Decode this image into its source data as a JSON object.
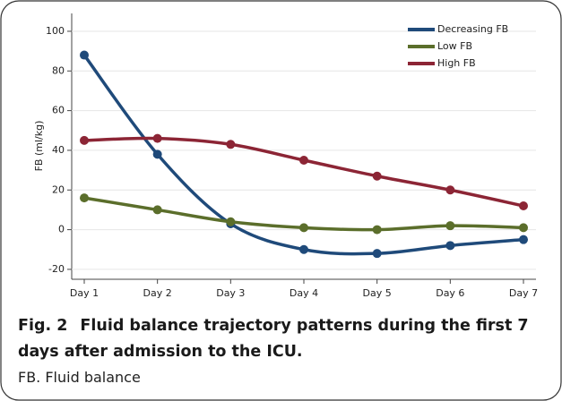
{
  "chart_data": {
    "type": "line",
    "y_label": "FB (ml/kg)",
    "categories": [
      "Day 1",
      "Day 2",
      "Day 3",
      "Day 4",
      "Day 5",
      "Day 6",
      "Day 7"
    ],
    "series": [
      {
        "name": "Decreasing FB",
        "color": "#1f4a7a",
        "values": [
          88,
          38,
          3,
          -10,
          -12,
          -8,
          -5
        ]
      },
      {
        "name": "Low FB",
        "color": "#5b6e2b",
        "values": [
          16,
          10,
          4,
          1,
          0,
          2,
          1
        ]
      },
      {
        "name": "High FB",
        "color": "#8c2535",
        "values": [
          45,
          46,
          43,
          35,
          27,
          20,
          12
        ]
      }
    ],
    "ylim": [
      -25,
      109
    ],
    "yticks": [
      -20,
      0,
      20,
      40,
      60,
      80,
      100
    ],
    "legend": "top-right",
    "caption": {
      "label": "Fig. 2",
      "text": "Fluid balance trajectory patterns during the first 7 days after admission to the ICU."
    },
    "footnote": "FB. Fluid balance"
  }
}
